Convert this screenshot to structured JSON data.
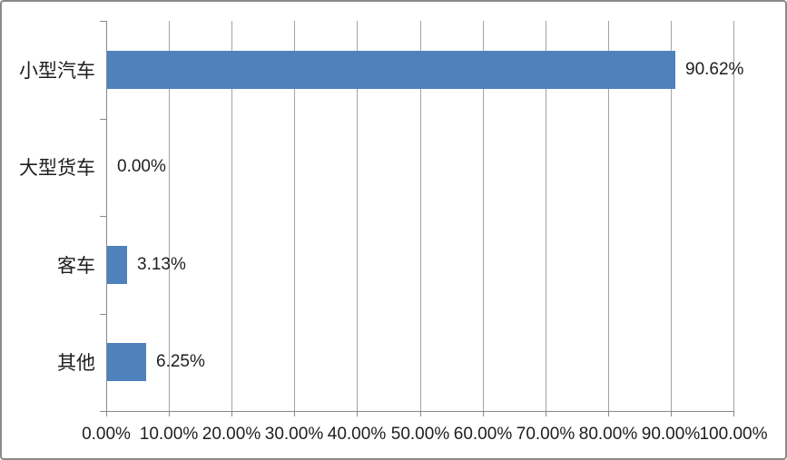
{
  "chart_data": {
    "type": "bar",
    "orientation": "horizontal",
    "title": "",
    "categories": [
      "小型汽车",
      "大型货车",
      "客车",
      "其他"
    ],
    "values": [
      90.62,
      0.0,
      3.13,
      6.25
    ],
    "value_labels": [
      "90.62%",
      "0.00%",
      "3.13%",
      "6.25%"
    ],
    "x_tick_labels": [
      "0.00%",
      "10.00%",
      "20.00%",
      "30.00%",
      "40.00%",
      "50.00%",
      "60.00%",
      "70.00%",
      "80.00%",
      "90.00%",
      "100.00%"
    ],
    "xlim": [
      0,
      100
    ],
    "grid": true,
    "legend_position": "none",
    "colors": {
      "bar": "#4F81BD",
      "gridline": "#A3A3A3",
      "axis": "#898989",
      "chart_border": "#8A8A8A",
      "background": "#FFFFFF",
      "text": "#1E1E1E"
    }
  }
}
